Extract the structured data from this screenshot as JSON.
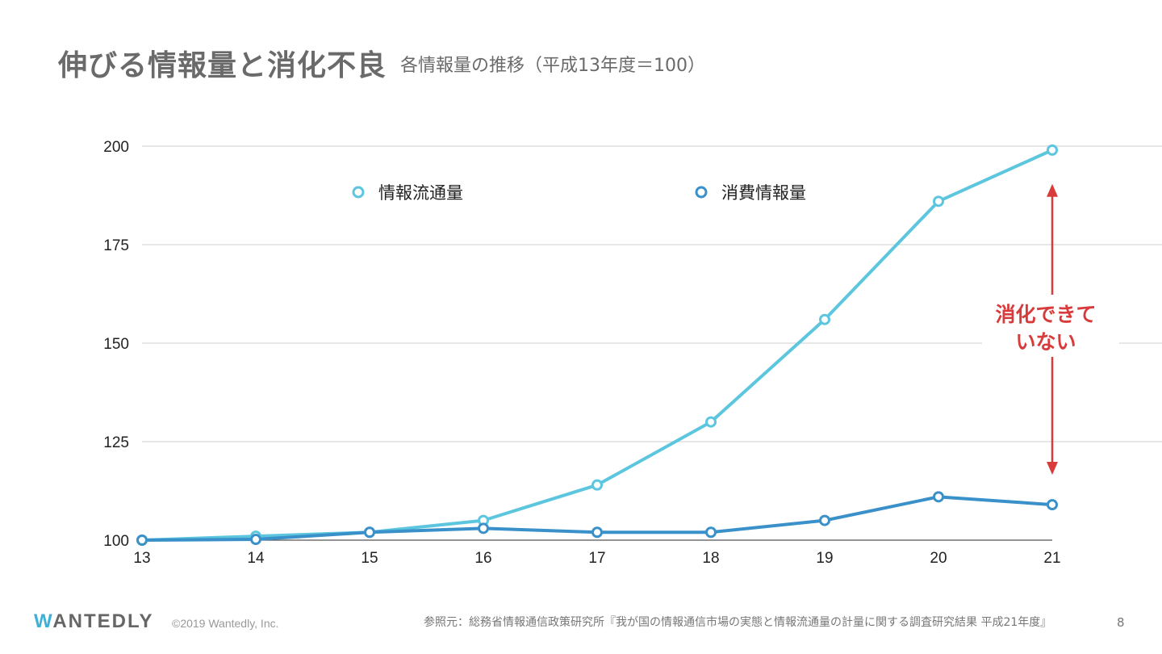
{
  "header": {
    "title": "伸びる情報量と消化不良",
    "subtitle": "各情報量の推移（平成13年度＝100）"
  },
  "chart_data": {
    "type": "line",
    "x": [
      13,
      14,
      15,
      16,
      17,
      18,
      19,
      20,
      21
    ],
    "x_tick_labels": [
      "13",
      "14",
      "15",
      "16",
      "17",
      "18",
      "19",
      "20",
      "21"
    ],
    "y_tick_labels": [
      "100",
      "125",
      "150",
      "175",
      "200"
    ],
    "yticks": [
      100,
      125,
      150,
      175,
      200
    ],
    "ylim": [
      100,
      200
    ],
    "xlim": [
      13,
      21
    ],
    "grid": true,
    "legend_placement": "top-center",
    "series": [
      {
        "name": "情報流通量",
        "color": "#5cc6df",
        "values": [
          100,
          101,
          102,
          105,
          114,
          130,
          156,
          186,
          199
        ]
      },
      {
        "name": "消費情報量",
        "color": "#3a90c9",
        "values": [
          100,
          100.2,
          102,
          103,
          102,
          102,
          105,
          111,
          109
        ]
      }
    ],
    "annotation": {
      "lines": [
        "消化できて",
        "いない"
      ],
      "color": "#d83b3b",
      "x": 21,
      "from": 190,
      "to": 117
    }
  },
  "footer": {
    "logo": "WANTEDLY",
    "copyright": "©2019 Wantedly, Inc.",
    "source": "参照元：総務省情報通信政策研究所『我が国の情報通信市場の実態と情報流通量の計量に関する調査研究結果 平成21年度』",
    "page": "8"
  }
}
